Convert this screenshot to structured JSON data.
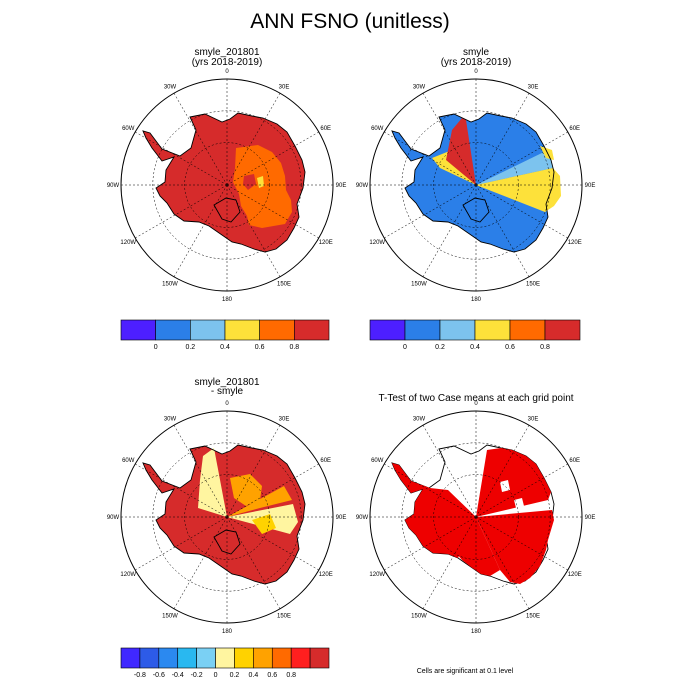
{
  "title": "ANN FSNO (unitless)",
  "colors": {
    "p_blue_dark": "#4d1fff",
    "p_blue": "#2b7fe8",
    "p_blue_light": "#7cc3ee",
    "p_yellow": "#fde13a",
    "p_orange": "#ff6a00",
    "p_red": "#d62b2b",
    "d_purple": "#4028ff",
    "d_blue": "#2d5be8",
    "d_blue2": "#2b89f0",
    "d_cyan": "#29b8f0",
    "d_cyan2": "#7ad0f4",
    "d_lightyellow": "#fff5a0",
    "d_yellow": "#ffd200",
    "d_orange": "#ffa200",
    "d_orange2": "#ff6a00",
    "d_red": "#ff1f1f",
    "d_darkred": "#d62b2b",
    "sig_red": "#ee0000"
  },
  "chart_data": [
    {
      "type": "heatmap",
      "subtitle_line1": "smyle_201801",
      "subtitle_line2": "(yrs 2018-2019)",
      "projection": "polar-stereographic",
      "lon_labels": [
        "0",
        "30E",
        "60E",
        "90E",
        "120E",
        "150E",
        "180",
        "150W",
        "120W",
        "90W",
        "60W",
        "30W"
      ],
      "colorbar_labels": [
        "0",
        "0.2",
        "0.4",
        "0.6",
        "0.8"
      ],
      "colorbar_colors": [
        "p_blue_dark",
        "p_blue",
        "p_blue_light",
        "p_yellow",
        "p_orange",
        "p_red"
      ]
    },
    {
      "type": "heatmap",
      "subtitle_line1": "smyle",
      "subtitle_line2": "(yrs 2018-2019)",
      "projection": "polar-stereographic",
      "lon_labels": [
        "0",
        "30E",
        "60E",
        "90E",
        "120E",
        "150E",
        "180",
        "150W",
        "120W",
        "90W",
        "60W",
        "30W"
      ],
      "colorbar_labels": [
        "0",
        "0.2",
        "0.4",
        "0.6",
        "0.8"
      ],
      "colorbar_colors": [
        "p_blue_dark",
        "p_blue",
        "p_blue_light",
        "p_yellow",
        "p_orange",
        "p_red"
      ]
    },
    {
      "type": "heatmap",
      "subtitle_line1": "smyle_201801",
      "subtitle_line2": " - smyle",
      "projection": "polar-stereographic",
      "lon_labels": [
        "0",
        "30E",
        "60E",
        "90E",
        "120E",
        "150E",
        "180",
        "150W",
        "120W",
        "90W",
        "60W",
        "30W"
      ],
      "colorbar_labels": [
        "-0.8",
        "-0.6",
        "-0.4",
        "-0.2",
        "0",
        "0.2",
        "0.4",
        "0.6",
        "0.8"
      ],
      "colorbar_colors": [
        "d_purple",
        "d_blue",
        "d_blue2",
        "d_cyan",
        "d_cyan2",
        "d_lightyellow",
        "d_yellow",
        "d_orange",
        "d_orange2",
        "d_red",
        "d_darkred"
      ]
    },
    {
      "type": "heatmap",
      "subtitle_line1": "T-Test of two Case means at each grid point",
      "projection": "polar-stereographic",
      "lon_labels": [
        "0",
        "30E",
        "60E",
        "90E",
        "120E",
        "150E",
        "180",
        "150W",
        "120W",
        "90W",
        "60W",
        "30W"
      ],
      "footnote": "Cells are significant at 0.1 level"
    }
  ]
}
